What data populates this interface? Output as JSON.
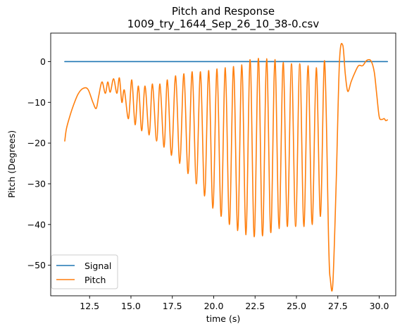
{
  "chart_data": {
    "type": "line",
    "title": "Pitch and Response",
    "subtitle": "1009_try_1644_Sep_26_10_38-0.csv",
    "xlabel": "time (s)",
    "ylabel": "Pitch (Degrees)",
    "xlim": [
      10.15,
      31.0
    ],
    "ylim": [
      -57.5,
      7.0
    ],
    "x_ticks": [
      12.5,
      15.0,
      17.5,
      20.0,
      22.5,
      25.0,
      27.5,
      30.0
    ],
    "x_tick_labels": [
      "12.5",
      "15.0",
      "17.5",
      "20.0",
      "22.5",
      "25.0",
      "27.5",
      "30.0"
    ],
    "y_ticks": [
      0,
      -10,
      -20,
      -30,
      -40,
      -50
    ],
    "y_tick_labels": [
      "0",
      "−10",
      "−20",
      "−30",
      "−40",
      "−50"
    ],
    "grid": false,
    "legend": {
      "position": "lower-left",
      "entries": [
        "Signal",
        "Pitch"
      ]
    },
    "colors": {
      "signal": "#1f77b4",
      "pitch": "#ff7f0e"
    },
    "series": [
      {
        "name": "Signal",
        "x": [
          11.0,
          30.5
        ],
        "y": [
          0,
          0
        ]
      },
      {
        "name": "Pitch",
        "x": [
          11.0,
          11.1,
          11.3,
          11.5,
          11.8,
          12.1,
          12.4,
          12.7,
          12.9,
          13.05,
          13.25,
          13.45,
          13.6,
          13.75,
          13.95,
          14.15,
          14.3,
          14.45,
          14.6,
          14.85,
          15.05,
          15.25,
          15.45,
          15.65,
          15.85,
          16.1,
          16.3,
          16.55,
          16.75,
          17.0,
          17.2,
          17.45,
          17.7,
          17.95,
          18.2,
          18.45,
          18.7,
          18.95,
          19.2,
          19.45,
          19.7,
          19.95,
          20.2,
          20.45,
          20.7,
          20.95,
          21.2,
          21.45,
          21.7,
          21.95,
          22.2,
          22.45,
          22.7,
          22.95,
          23.2,
          23.45,
          23.7,
          23.95,
          24.2,
          24.45,
          24.7,
          24.95,
          25.2,
          25.45,
          25.7,
          25.95,
          26.2,
          26.45,
          26.7,
          26.95,
          27.05,
          27.2,
          27.4,
          27.6,
          27.8,
          27.95,
          28.1,
          28.3,
          28.5,
          28.75,
          29.0,
          29.25,
          29.5,
          29.7,
          29.85,
          30.0,
          30.15,
          30.3,
          30.4,
          30.5
        ],
        "y": [
          -19.5,
          -16.5,
          -13.5,
          -11.0,
          -8.0,
          -6.6,
          -6.8,
          -10.0,
          -11.5,
          -8.5,
          -5.0,
          -7.8,
          -5.0,
          -7.5,
          -4.2,
          -7.8,
          -4.0,
          -10.0,
          -7.0,
          -14.0,
          -4.5,
          -15.5,
          -6.0,
          -17.0,
          -6.0,
          -18.0,
          -5.5,
          -19.5,
          -5.5,
          -21.0,
          -4.5,
          -23.0,
          -3.5,
          -25.0,
          -3.0,
          -27.5,
          -2.5,
          -30.0,
          -2.5,
          -33.0,
          -2.2,
          -36.0,
          -1.8,
          -38.0,
          -1.5,
          -40.0,
          -1.2,
          -41.5,
          -0.8,
          -42.5,
          0.5,
          -43.0,
          0.8,
          -42.8,
          0.7,
          -42.0,
          0.5,
          -41.0,
          -0.2,
          -40.5,
          -0.5,
          -40.5,
          -0.5,
          -40.5,
          -1.0,
          -40.0,
          -1.5,
          -38.0,
          0.2,
          -45.0,
          -53.5,
          -54.5,
          -30.0,
          0.0,
          4.0,
          -3.0,
          -7.3,
          -5.0,
          -3.0,
          -1.0,
          -1.0,
          0.3,
          0.2,
          -2.5,
          -8.0,
          -13.5,
          -14.2,
          -14.0,
          -14.5,
          -14.3
        ]
      }
    ]
  }
}
